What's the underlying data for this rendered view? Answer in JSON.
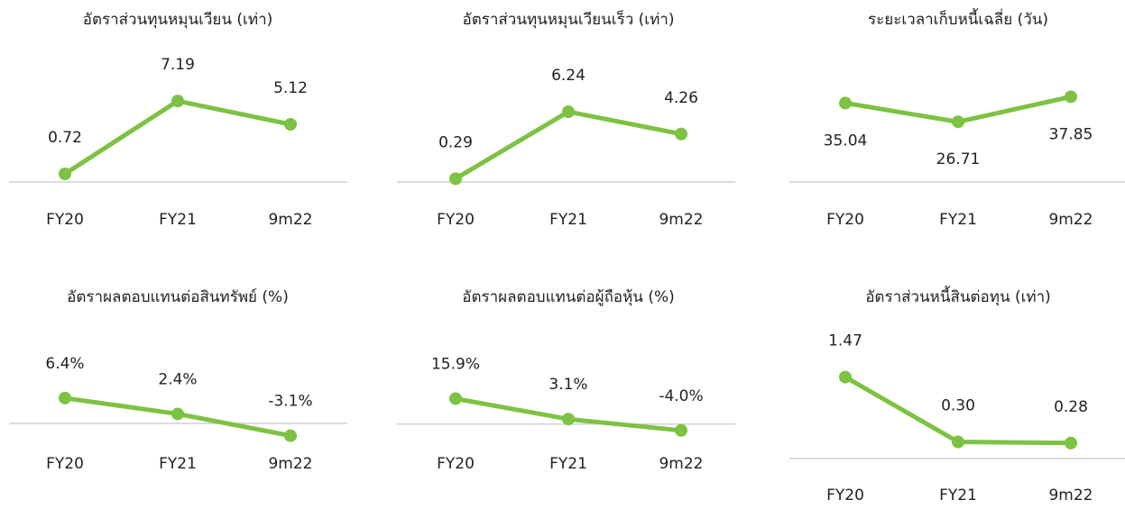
{
  "chart_data": [
    {
      "type": "line",
      "title": "อัตราส่วนทุนหมุนเวียน (เท่า)",
      "categories": [
        "FY20",
        "FY21",
        "9m22"
      ],
      "values": [
        0.72,
        7.19,
        5.12
      ],
      "value_labels": [
        "0.72",
        "7.19",
        "5.12"
      ],
      "color": "#7dc242",
      "ylim": [
        0,
        8
      ]
    },
    {
      "type": "line",
      "title": "อัตราส่วนทุนหมุนเวียนเร็ว (เท่า)",
      "categories": [
        "FY20",
        "FY21",
        "9m22"
      ],
      "values": [
        0.29,
        6.24,
        4.26
      ],
      "value_labels": [
        "0.29",
        "6.24",
        "4.26"
      ],
      "color": "#7dc242",
      "ylim": [
        0,
        8
      ]
    },
    {
      "type": "line",
      "title": "ระยะเวลาเก็บหนี้เฉลี่ย (วัน)",
      "categories": [
        "FY20",
        "FY21",
        "9m22"
      ],
      "values": [
        35.04,
        26.71,
        37.85
      ],
      "value_labels": [
        "35.04",
        "26.71",
        "37.85"
      ],
      "color": "#7dc242",
      "ylim": [
        0,
        40
      ]
    },
    {
      "type": "line",
      "title": "อัตราผลตอบแทนต่อสินทรัพย์ (%)",
      "categories": [
        "FY20",
        "FY21",
        "9m22"
      ],
      "values": [
        6.4,
        2.4,
        -3.1
      ],
      "value_labels": [
        "6.4%",
        "2.4%",
        "-3.1%"
      ],
      "color": "#7dc242",
      "ylim": [
        -5,
        20
      ]
    },
    {
      "type": "line",
      "title": "อัตราผลตอบแทนต่อผู้ถือหุ้น (%)",
      "categories": [
        "FY20",
        "FY21",
        "9m22"
      ],
      "values": [
        15.9,
        3.1,
        -4.0
      ],
      "value_labels": [
        "15.9%",
        "3.1%",
        "-4.0%"
      ],
      "color": "#7dc242",
      "ylim": [
        -12,
        50
      ]
    },
    {
      "type": "line",
      "title": "อัตราส่วนหนี้สินต่อทุน (เท่า)",
      "categories": [
        "FY20",
        "FY21",
        "9m22"
      ],
      "values": [
        1.47,
        0.3,
        0.28
      ],
      "value_labels": [
        "1.47",
        "0.30",
        "0.28"
      ],
      "color": "#7dc242",
      "ylim": [
        0,
        2
      ]
    }
  ]
}
